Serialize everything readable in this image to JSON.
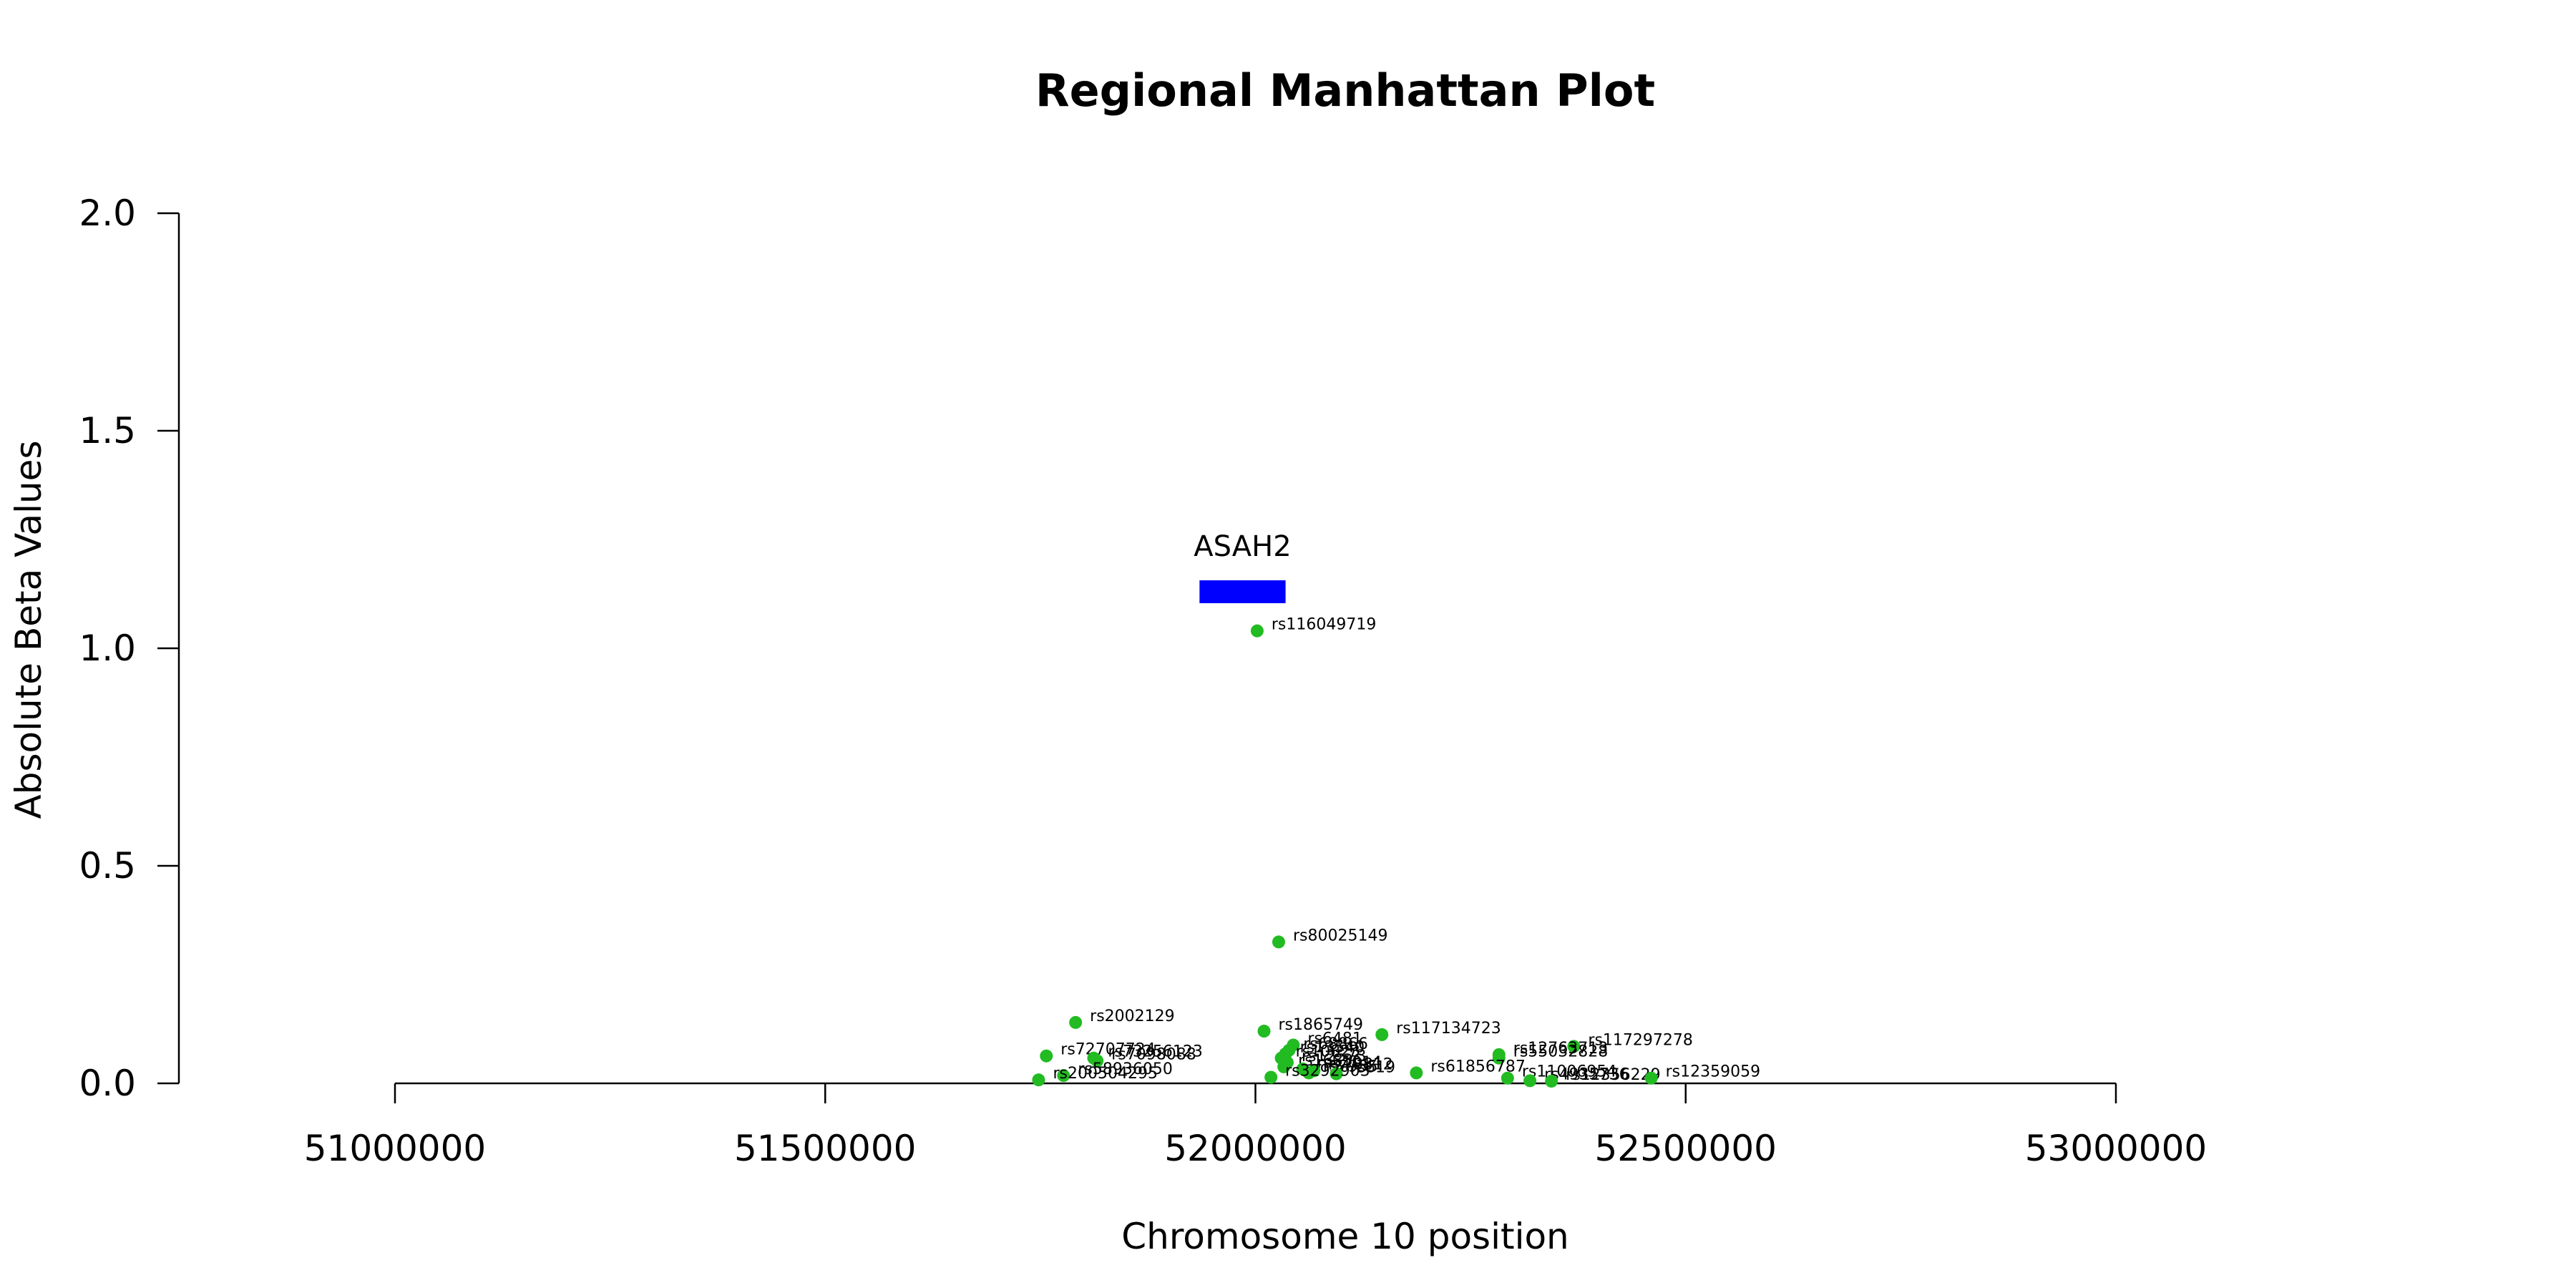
{
  "chart_data": {
    "type": "scatter",
    "title": "Regional Manhattan Plot",
    "xlabel": "Chromosome 10 position",
    "ylabel": "Absolute Beta Values",
    "xlim": [
      50750000,
      53250000
    ],
    "ylim": [
      0,
      2
    ],
    "x_ticks": [
      51000000,
      51500000,
      52000000,
      52500000,
      53000000
    ],
    "x_tick_labels": [
      "51000000",
      "51500000",
      "52000000",
      "52500000",
      "53000000"
    ],
    "y_ticks": [
      0,
      0.5,
      1,
      1.5,
      2
    ],
    "y_tick_labels": [
      "0.0",
      "0.5",
      "1.0",
      "1.5",
      "2.0"
    ],
    "grid": false,
    "point_color": "#22bb22",
    "gene": {
      "name": "ASAH2",
      "start": 51935000,
      "end": 52035000,
      "y": 1.13,
      "color": "#0000ff"
    },
    "series": [
      {
        "points": [
          {
            "label": "rs116049719",
            "x": 52002000,
            "y": 1.04
          },
          {
            "label": "rs80025149",
            "x": 52027000,
            "y": 0.325
          },
          {
            "label": "rs2002129",
            "x": 51791000,
            "y": 0.14
          },
          {
            "label": "rs1865749",
            "x": 52010000,
            "y": 0.12
          },
          {
            "label": "rs117134723",
            "x": 52147000,
            "y": 0.112
          },
          {
            "label": "rs117297278",
            "x": 52370000,
            "y": 0.085
          },
          {
            "label": "rs12763713",
            "x": 52283000,
            "y": 0.066
          },
          {
            "label": "rs55032828",
            "x": 52283000,
            "y": 0.058
          },
          {
            "label": "rs72707724",
            "x": 51757000,
            "y": 0.063
          },
          {
            "label": "rs73256123",
            "x": 51812000,
            "y": 0.058
          },
          {
            "label": "rs7098088",
            "x": 51816000,
            "y": 0.052
          },
          {
            "label": "rs6481",
            "x": 52044000,
            "y": 0.088
          },
          {
            "label": "rs68866",
            "x": 52039000,
            "y": 0.076
          },
          {
            "label": "rs13540",
            "x": 52035000,
            "y": 0.068
          },
          {
            "label": "rs10823",
            "x": 52030000,
            "y": 0.058
          },
          {
            "label": "rs12573",
            "x": 52037000,
            "y": 0.048
          },
          {
            "label": "rs16836",
            "x": 52033000,
            "y": 0.038
          },
          {
            "label": "rs51014",
            "x": 52055000,
            "y": 0.033
          },
          {
            "label": "rs78812",
            "x": 52068000,
            "y": 0.029
          },
          {
            "label": "rs7935",
            "x": 52062000,
            "y": 0.024
          },
          {
            "label": "rs619",
            "x": 52094000,
            "y": 0.022
          },
          {
            "label": "rs61856787",
            "x": 52187000,
            "y": 0.024
          },
          {
            "label": "rs3292903",
            "x": 52018000,
            "y": 0.014
          },
          {
            "label": "rs58936050",
            "x": 51777000,
            "y": 0.018
          },
          {
            "label": "rs200504295",
            "x": 51748000,
            "y": 0.008
          },
          {
            "label": "rs11006954",
            "x": 52293000,
            "y": 0.012
          },
          {
            "label": "rs4935736",
            "x": 52319000,
            "y": 0.006
          },
          {
            "label": "rs12356229",
            "x": 52344000,
            "y": 0.005
          },
          {
            "label": "rs12359059",
            "x": 52460000,
            "y": 0.012
          }
        ]
      }
    ]
  }
}
